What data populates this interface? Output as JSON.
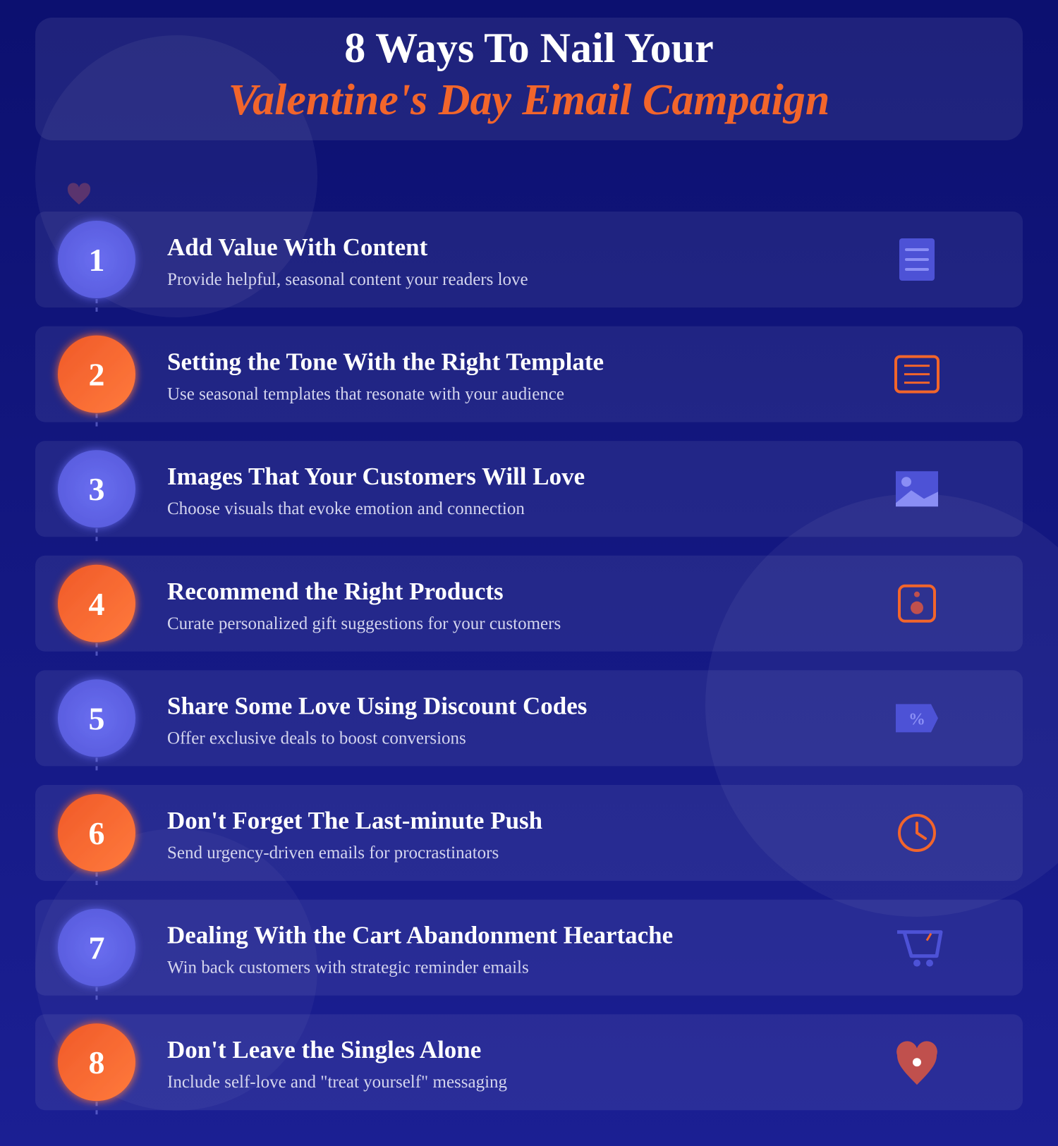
{
  "header": {
    "title_line1": "8 Ways To Nail Your",
    "title_line2": "Valentine's Day Email Campaign"
  },
  "items": [
    {
      "number": "1",
      "title": "Add Value With Content",
      "description": "Provide helpful, seasonal content your readers love"
    },
    {
      "number": "2",
      "title": "Setting the Tone With the Right Template",
      "description": "Use seasonal templates that resonate with your audience"
    },
    {
      "number": "3",
      "title": "Images That Your Customers Will Love",
      "description": "Choose visuals that evoke emotion and connection"
    },
    {
      "number": "4",
      "title": "Recommend the Right Products",
      "description": "Curate personalized gift suggestions for your customers"
    },
    {
      "number": "5",
      "title": "Share Some Love Using Discount Codes",
      "description": "Offer exclusive deals to boost conversions",
      "icon_label": "%"
    },
    {
      "number": "6",
      "title": "Don't Forget The Last-minute Push",
      "description": "Send urgency-driven emails for procrastinators"
    },
    {
      "number": "7",
      "title": "Dealing With the Cart Abandonment Heartache",
      "description": "Win back customers with strategic reminder emails"
    },
    {
      "number": "8",
      "title": "Don't Leave the Singles Alone",
      "description": "Include self-love and \"treat yourself\" messaging"
    }
  ]
}
